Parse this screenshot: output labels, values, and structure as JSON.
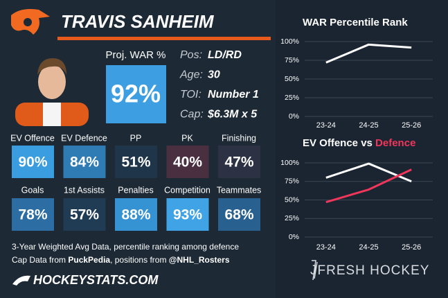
{
  "header": {
    "name": "TRAVIS SANHEIM"
  },
  "proj_war": {
    "label": "Proj. WAR %",
    "value": "92%",
    "color": "#3d9fe2"
  },
  "info": [
    {
      "label": "Pos:",
      "value": "LD/RD"
    },
    {
      "label": "Age:",
      "value": "30"
    },
    {
      "label": "TOI:",
      "value": "Number 1"
    },
    {
      "label": "Cap:",
      "value": "$6.3M x 5"
    }
  ],
  "tiles": [
    {
      "label": "EV Offence",
      "value": "90%",
      "color": "#3a9de0"
    },
    {
      "label": "EV Defence",
      "value": "84%",
      "color": "#2f7cb5"
    },
    {
      "label": "PP",
      "value": "51%",
      "color": "#1f3549"
    },
    {
      "label": "PK",
      "value": "40%",
      "color": "#4a2f40"
    },
    {
      "label": "Finishing",
      "value": "47%",
      "color": "#2c3244"
    },
    {
      "label": "Goals",
      "value": "78%",
      "color": "#2c6ea3"
    },
    {
      "label": "1st Assists",
      "value": "57%",
      "color": "#203c55"
    },
    {
      "label": "Penalties",
      "value": "88%",
      "color": "#3592d3"
    },
    {
      "label": "Competition",
      "value": "93%",
      "color": "#3fa3e6"
    },
    {
      "label": "Teammates",
      "value": "68%",
      "color": "#28608f"
    }
  ],
  "footer": {
    "line1": "3-Year Weighted Avg Data, percentile ranking among defence",
    "line2": [
      {
        "text": "Cap Data from ",
        "bold": false
      },
      {
        "text": "PuckPedia",
        "bold": true
      },
      {
        "text": ", positions from ",
        "bold": false
      },
      {
        "text": "@NHL_Rosters",
        "bold": true
      }
    ]
  },
  "brand": "HOCKEYSTATS.COM",
  "watermark": "JFRESH HOCKEY",
  "chart_data": [
    {
      "type": "line",
      "title": "WAR Percentile Rank",
      "categories": [
        "23-24",
        "24-25",
        "25-26"
      ],
      "series": [
        {
          "color": "#ffffff",
          "values": [
            72,
            96,
            92
          ]
        }
      ],
      "ylim": [
        0,
        100
      ],
      "yticks": [
        {
          "value": 0,
          "label": "0%"
        },
        {
          "value": 25,
          "label": "25%"
        },
        {
          "value": 50,
          "label": "50%"
        },
        {
          "value": 75,
          "label": "75%"
        },
        {
          "value": 100,
          "label": "100%"
        }
      ],
      "grid": true
    },
    {
      "type": "line",
      "title": "EV Offence vs ",
      "title_highlight": "Defence",
      "title_highlight_color": "#f0365a",
      "categories": [
        "23-24",
        "24-25",
        "25-26"
      ],
      "series": [
        {
          "color": "#ffffff",
          "values": [
            80,
            99,
            75
          ]
        },
        {
          "color": "#f0365a",
          "values": [
            47,
            64,
            91
          ]
        }
      ],
      "ylim": [
        0,
        100
      ],
      "yticks": [
        {
          "value": 0,
          "label": "0%"
        },
        {
          "value": 25,
          "label": "25%"
        },
        {
          "value": 50,
          "label": "50%"
        },
        {
          "value": 75,
          "label": "75%"
        },
        {
          "value": 100,
          "label": "100%"
        }
      ],
      "grid": true
    }
  ]
}
